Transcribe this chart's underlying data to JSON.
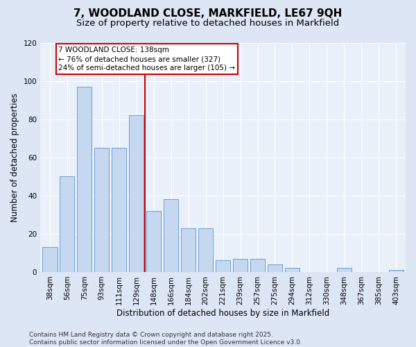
{
  "title": "7, WOODLAND CLOSE, MARKFIELD, LE67 9QH",
  "subtitle": "Size of property relative to detached houses in Markfield",
  "xlabel": "Distribution of detached houses by size in Markfield",
  "ylabel": "Number of detached properties",
  "categories": [
    "38sqm",
    "56sqm",
    "75sqm",
    "93sqm",
    "111sqm",
    "129sqm",
    "148sqm",
    "166sqm",
    "184sqm",
    "202sqm",
    "221sqm",
    "239sqm",
    "257sqm",
    "275sqm",
    "294sqm",
    "312sqm",
    "330sqm",
    "348sqm",
    "367sqm",
    "385sqm",
    "403sqm"
  ],
  "values": [
    13,
    50,
    97,
    65,
    65,
    82,
    32,
    38,
    23,
    23,
    6,
    7,
    7,
    4,
    2,
    0,
    0,
    2,
    0,
    0,
    1
  ],
  "bar_color": "#c5d8f0",
  "bar_edge_color": "#6a9fd4",
  "vline_x_index": 6,
  "vline_color": "#cc0000",
  "annotation_text": "7 WOODLAND CLOSE: 138sqm\n← 76% of detached houses are smaller (327)\n24% of semi-detached houses are larger (105) →",
  "annotation_box_color": "#ffffff",
  "annotation_box_edge": "#cc0000",
  "ylim": [
    0,
    120
  ],
  "yticks": [
    0,
    20,
    40,
    60,
    80,
    100,
    120
  ],
  "footer": "Contains HM Land Registry data © Crown copyright and database right 2025.\nContains public sector information licensed under the Open Government Licence v3.0.",
  "bg_color": "#dde6f5",
  "plot_bg_color": "#eaf0f9",
  "title_fontsize": 11,
  "subtitle_fontsize": 9.5,
  "label_fontsize": 8.5,
  "tick_fontsize": 7.5,
  "footer_fontsize": 6.5
}
